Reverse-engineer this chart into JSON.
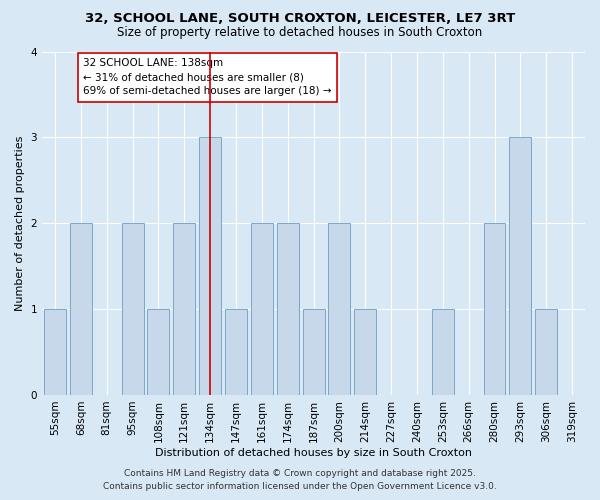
{
  "title": "32, SCHOOL LANE, SOUTH CROXTON, LEICESTER, LE7 3RT",
  "subtitle": "Size of property relative to detached houses in South Croxton",
  "xlabel": "Distribution of detached houses by size in South Croxton",
  "ylabel": "Number of detached properties",
  "categories": [
    "55sqm",
    "68sqm",
    "81sqm",
    "95sqm",
    "108sqm",
    "121sqm",
    "134sqm",
    "147sqm",
    "161sqm",
    "174sqm",
    "187sqm",
    "200sqm",
    "214sqm",
    "227sqm",
    "240sqm",
    "253sqm",
    "266sqm",
    "280sqm",
    "293sqm",
    "306sqm",
    "319sqm"
  ],
  "values": [
    1,
    2,
    0,
    2,
    1,
    2,
    3,
    1,
    2,
    2,
    1,
    2,
    1,
    0,
    0,
    1,
    0,
    2,
    3,
    1,
    0
  ],
  "bar_color": "#c8d8eb",
  "bar_edge_color": "#7ba7c9",
  "highlight_index": 6,
  "highlight_color": "#cc0000",
  "annotation_text": "32 SCHOOL LANE: 138sqm\n← 31% of detached houses are smaller (8)\n69% of semi-detached houses are larger (18) →",
  "annotation_box_color": "#ffffff",
  "annotation_box_edge": "#cc0000",
  "background_color": "#d8e8f4",
  "plot_background": "#d8e8f4",
  "ylim": [
    0,
    4
  ],
  "yticks": [
    0,
    1,
    2,
    3,
    4
  ],
  "footer_line1": "Contains HM Land Registry data © Crown copyright and database right 2025.",
  "footer_line2": "Contains public sector information licensed under the Open Government Licence v3.0.",
  "title_fontsize": 9.5,
  "subtitle_fontsize": 8.5,
  "axis_label_fontsize": 8,
  "tick_fontsize": 7.5,
  "annotation_fontsize": 7.5,
  "footer_fontsize": 6.5
}
